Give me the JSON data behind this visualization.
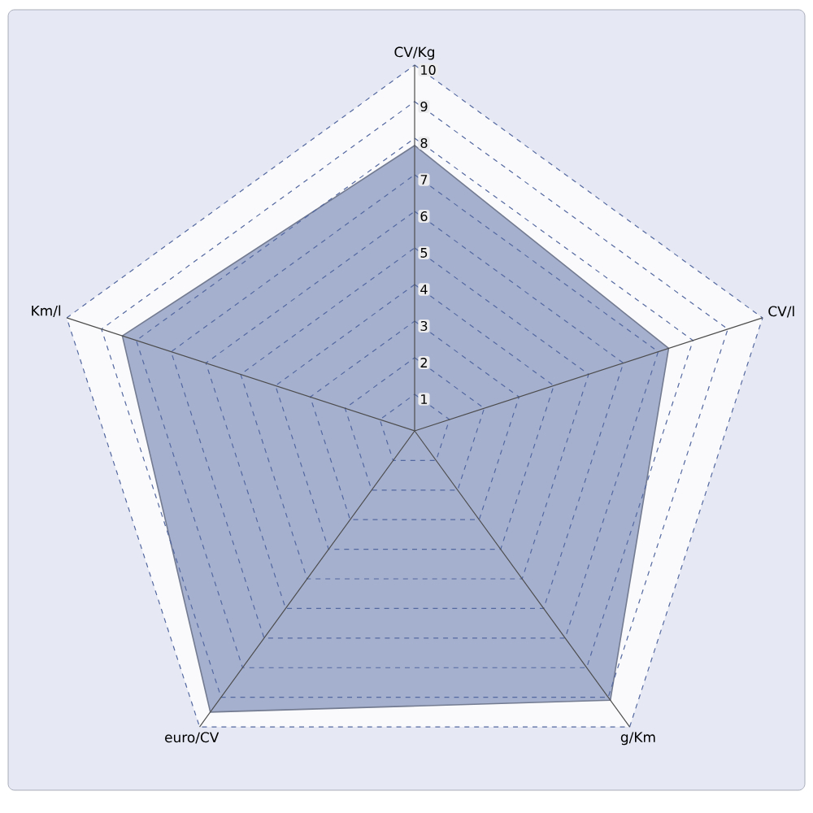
{
  "chart_data": {
    "type": "radar",
    "categories": [
      "CV/Kg",
      "CV/l",
      "g/Km",
      "euro/CV",
      "Km/l"
    ],
    "series": [
      {
        "color": "#a5b0cf",
        "values": [
          7.8,
          7.3,
          9.1,
          9.5,
          8.4
        ]
      }
    ],
    "ylim": [
      0,
      10
    ],
    "yticks": [
      1,
      2,
      3,
      4,
      5,
      6,
      7,
      8,
      9,
      10
    ],
    "grid": true
  }
}
